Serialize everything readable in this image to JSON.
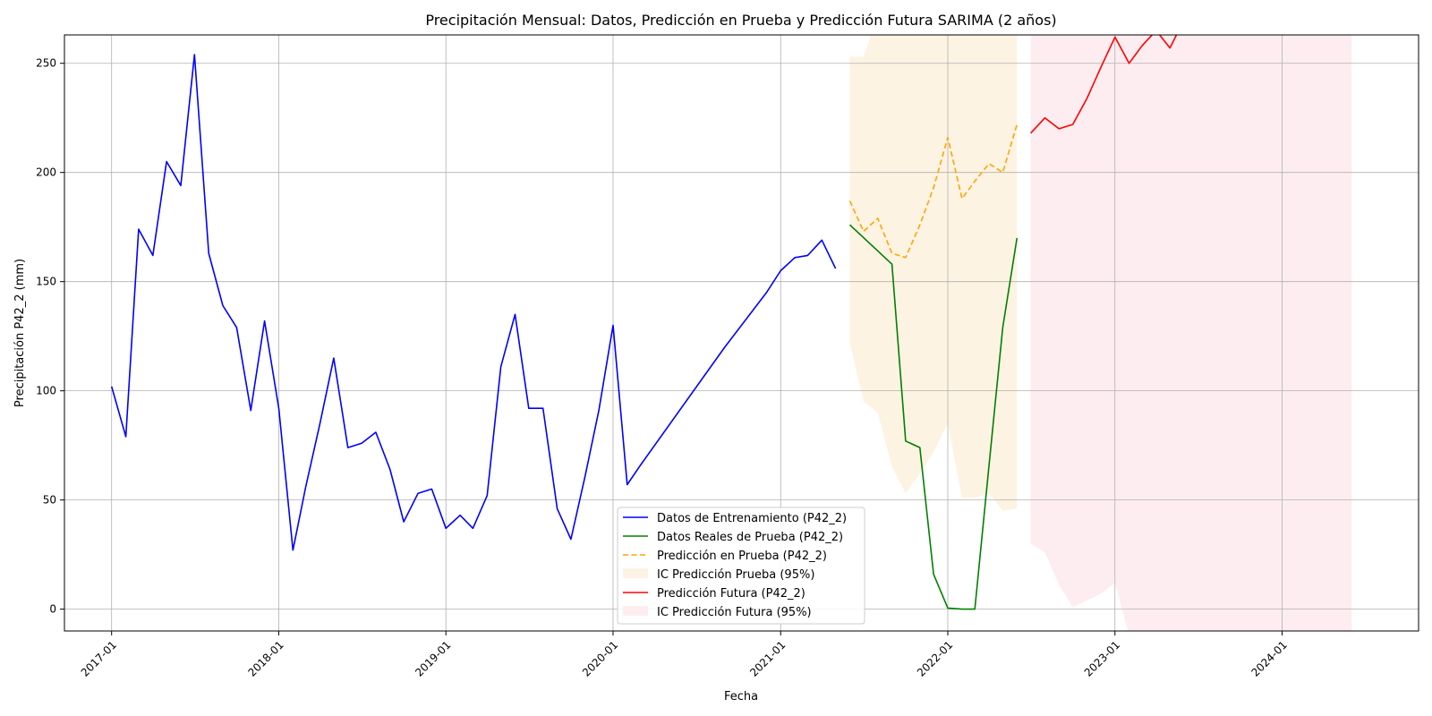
{
  "chart_data": {
    "type": "line",
    "title": "Precipitación Mensual: Datos, Predicción en Prueba y Predicción Futura SARIMA (2 años)",
    "xlabel": "Fecha",
    "ylabel": "Precipitación P42_2 (mm)",
    "xlim": [
      "2016-09-20",
      "2024-10-25"
    ],
    "ylim": [
      -10,
      263
    ],
    "grid": true,
    "legend_position": "lower-center",
    "x_ticks": [
      "2017-01",
      "2018-01",
      "2019-01",
      "2020-01",
      "2021-01",
      "2022-01",
      "2023-01",
      "2024-01"
    ],
    "y_ticks": [
      0,
      50,
      100,
      150,
      200,
      250
    ],
    "colors": {
      "train": "#0000ff",
      "test_actual": "#008000",
      "test_pred": "#ffa500",
      "test_ci": "#fdf3e3",
      "future_pred": "#ff0000",
      "future_ci": "#fdedf0"
    },
    "series": [
      {
        "name": "Datos de Entrenamiento (P42_2)",
        "style": "solid",
        "color": "#0000ff",
        "x": [
          "2017-01",
          "2017-02",
          "2017-03",
          "2017-04",
          "2017-05",
          "2017-06",
          "2017-07",
          "2017-08",
          "2017-09",
          "2017-10",
          "2017-11",
          "2017-12",
          "2018-01",
          "2018-02",
          "2018-03",
          "2018-04",
          "2018-05",
          "2018-06",
          "2018-07",
          "2018-08",
          "2018-09",
          "2018-10",
          "2018-11",
          "2018-12",
          "2019-01",
          "2019-02",
          "2019-03",
          "2019-04",
          "2019-05",
          "2019-06",
          "2019-07",
          "2019-08",
          "2019-09",
          "2019-10",
          "2019-11",
          "2019-12",
          "2020-01",
          "2020-02",
          "2020-03",
          "2020-09",
          "2020-12",
          "2021-01",
          "2021-02",
          "2021-03",
          "2021-04",
          "2021-05"
        ],
        "values": [
          102,
          79,
          174,
          162,
          205,
          194,
          254,
          163,
          139,
          129,
          91,
          132,
          92,
          27,
          56,
          85,
          115,
          74,
          76,
          81,
          64,
          40,
          53,
          55,
          37,
          43,
          37,
          52,
          111,
          135,
          92,
          92,
          46,
          32,
          61,
          91,
          130,
          57,
          66,
          120,
          145,
          155,
          161,
          162,
          169,
          156
        ]
      },
      {
        "name": "Datos Reales de Prueba (P42_2)",
        "style": "solid",
        "color": "#008000",
        "x": [
          "2021-06",
          "2021-09",
          "2021-10",
          "2021-11",
          "2021-12",
          "2022-01",
          "2022-02",
          "2022-03",
          "2022-04",
          "2022-05",
          "2022-06"
        ],
        "values": [
          176,
          158,
          77,
          74,
          16,
          0.5,
          0,
          0,
          66,
          129,
          170
        ]
      },
      {
        "name": "Predicción en Prueba (P42_2)",
        "style": "dashed",
        "color": "#ffa500",
        "x": [
          "2021-06",
          "2021-07",
          "2021-08",
          "2021-09",
          "2021-10",
          "2021-11",
          "2021-12",
          "2022-01",
          "2022-02",
          "2022-03",
          "2022-04",
          "2022-05",
          "2022-06"
        ],
        "values": [
          187,
          173,
          179,
          163,
          161,
          176,
          193,
          216,
          188,
          196,
          204,
          200,
          222
        ]
      },
      {
        "name": "IC Predicción Prueba (95%)",
        "style": "band",
        "color": "#fdf3e3",
        "x": [
          "2021-06",
          "2021-07",
          "2021-08",
          "2021-09",
          "2021-10",
          "2021-11",
          "2021-12",
          "2022-01",
          "2022-02",
          "2022-03",
          "2022-04",
          "2022-05",
          "2022-06"
        ],
        "lower": [
          122,
          95,
          90,
          65,
          53,
          62,
          72,
          85,
          51,
          51,
          53,
          45,
          46
        ],
        "upper": [
          253,
          253,
          272,
          272,
          272,
          272,
          272,
          272,
          272,
          272,
          272,
          272,
          272
        ]
      },
      {
        "name": "Predicción Futura (P42_2)",
        "style": "solid",
        "color": "#ff0000",
        "x": [
          "2022-07",
          "2022-08",
          "2022-09",
          "2022-10",
          "2022-11",
          "2022-12",
          "2023-01",
          "2023-02",
          "2023-03",
          "2023-04",
          "2023-05",
          "2023-06",
          "2023-07",
          "2023-08",
          "2023-09",
          "2023-10",
          "2023-11",
          "2023-12",
          "2024-01",
          "2024-02",
          "2024-03",
          "2024-04",
          "2024-05",
          "2024-06"
        ],
        "values": [
          218,
          225,
          220,
          222,
          234,
          248,
          262,
          250,
          258,
          265,
          257,
          270,
          272,
          272,
          272,
          272,
          272,
          272,
          272,
          272,
          272,
          272,
          272,
          272
        ]
      },
      {
        "name": "IC Predicción Futura (95%)",
        "style": "band",
        "color": "#fdedf0",
        "x": [
          "2022-07",
          "2022-08",
          "2022-09",
          "2022-10",
          "2022-11",
          "2022-12",
          "2023-01",
          "2023-02",
          "2023-03",
          "2023-04",
          "2023-05",
          "2023-06",
          "2023-07",
          "2023-08",
          "2023-09",
          "2023-10",
          "2023-11",
          "2023-12",
          "2024-01",
          "2024-02",
          "2024-03",
          "2024-04",
          "2024-05",
          "2024-06"
        ],
        "lower": [
          30,
          26,
          11,
          1,
          4,
          7,
          12,
          -12,
          -12,
          -12,
          -12,
          -12,
          -12,
          -12,
          -12,
          -12,
          -12,
          -12,
          -12,
          -12,
          -12,
          -12,
          -12,
          -12
        ],
        "upper": [
          272,
          272,
          272,
          272,
          272,
          272,
          272,
          272,
          272,
          272,
          272,
          272,
          272,
          272,
          272,
          272,
          272,
          272,
          272,
          272,
          272,
          272,
          272,
          272
        ]
      }
    ]
  }
}
